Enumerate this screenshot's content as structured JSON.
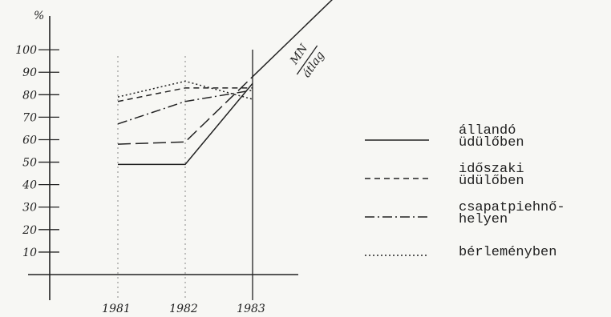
{
  "chart_data": {
    "type": "line",
    "y_label": "%",
    "categories": [
      "1981",
      "1982",
      "1983"
    ],
    "ylim": [
      0,
      115
    ],
    "yticks": [
      10,
      20,
      30,
      40,
      50,
      60,
      70,
      80,
      90,
      100
    ],
    "grid": true,
    "color": "#222222",
    "series": [
      {
        "name": [
          "állandó",
          "üdülőben"
        ],
        "dash": "solid",
        "values": [
          49,
          49,
          85
        ]
      },
      {
        "name": [
          "időszaki",
          "üdülőben"
        ],
        "dash": "dashed",
        "values": [
          77,
          83,
          83
        ]
      },
      {
        "name": [
          "csapatpiehnő-",
          "helyen"
        ],
        "dash": "dashdot",
        "values": [
          67,
          77,
          82
        ]
      },
      {
        "name": [
          "bérleményben"
        ],
        "dash": "dotted",
        "values": [
          79,
          86,
          78
        ]
      }
    ],
    "average_line": {
      "label": [
        "MN",
        "átlag"
      ],
      "values": [
        58,
        59,
        88
      ]
    }
  }
}
